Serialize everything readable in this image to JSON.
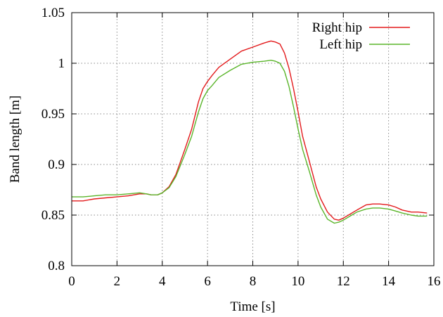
{
  "chart_data": {
    "type": "line",
    "xlabel": "Time [s]",
    "ylabel": "Band length [m]",
    "xlim": [
      0,
      16
    ],
    "ylim": [
      0.8,
      1.05
    ],
    "xticks": [
      0,
      2,
      4,
      6,
      8,
      10,
      12,
      14,
      16
    ],
    "xtick_labels": [
      "0",
      "2",
      "4",
      "6",
      "8",
      "10",
      "12",
      "14",
      "16"
    ],
    "yticks": [
      0.8,
      0.85,
      0.9,
      0.95,
      1.0,
      1.05
    ],
    "ytick_labels": [
      "0.8",
      "0.85",
      "0.9",
      "0.95",
      "1",
      "1.05"
    ],
    "grid": true,
    "legend_position": "top-right",
    "series": [
      {
        "name": "Right hip",
        "color": "#e31a1c",
        "x": [
          0,
          0.5,
          1,
          1.5,
          2,
          2.5,
          3,
          3.3,
          3.5,
          3.8,
          4.0,
          4.3,
          4.6,
          5.0,
          5.3,
          5.6,
          5.8,
          6.0,
          6.2,
          6.5,
          7.0,
          7.5,
          8.0,
          8.5,
          8.8,
          9.0,
          9.2,
          9.4,
          9.6,
          9.8,
          10.0,
          10.2,
          10.5,
          10.8,
          11.0,
          11.3,
          11.6,
          11.8,
          12.0,
          12.3,
          12.6,
          13.0,
          13.3,
          13.6,
          14.0,
          14.3,
          14.6,
          15.0,
          15.3,
          15.7
        ],
        "values": [
          0.864,
          0.864,
          0.866,
          0.867,
          0.868,
          0.869,
          0.871,
          0.871,
          0.87,
          0.87,
          0.872,
          0.878,
          0.89,
          0.915,
          0.935,
          0.962,
          0.975,
          0.982,
          0.988,
          0.996,
          1.004,
          1.012,
          1.016,
          1.02,
          1.022,
          1.021,
          1.019,
          1.01,
          0.995,
          0.975,
          0.952,
          0.928,
          0.903,
          0.878,
          0.866,
          0.853,
          0.846,
          0.845,
          0.847,
          0.851,
          0.855,
          0.86,
          0.861,
          0.861,
          0.86,
          0.858,
          0.855,
          0.853,
          0.853,
          0.852
        ]
      },
      {
        "name": "Left hip",
        "color": "#5ab52a",
        "x": [
          0,
          0.5,
          1,
          1.5,
          2,
          2.5,
          3,
          3.3,
          3.5,
          3.8,
          4.0,
          4.3,
          4.6,
          5.0,
          5.3,
          5.6,
          5.8,
          6.0,
          6.2,
          6.5,
          7.0,
          7.5,
          8.0,
          8.5,
          8.8,
          9.0,
          9.2,
          9.4,
          9.6,
          9.8,
          10.0,
          10.2,
          10.5,
          10.8,
          11.0,
          11.3,
          11.6,
          11.8,
          12.0,
          12.3,
          12.6,
          13.0,
          13.3,
          13.6,
          14.0,
          14.3,
          14.6,
          15.0,
          15.3,
          15.7
        ],
        "values": [
          0.868,
          0.868,
          0.869,
          0.87,
          0.87,
          0.871,
          0.872,
          0.871,
          0.87,
          0.87,
          0.872,
          0.877,
          0.888,
          0.91,
          0.928,
          0.952,
          0.965,
          0.973,
          0.978,
          0.986,
          0.993,
          0.999,
          1.001,
          1.002,
          1.003,
          1.002,
          1.0,
          0.992,
          0.977,
          0.957,
          0.935,
          0.915,
          0.893,
          0.87,
          0.858,
          0.846,
          0.842,
          0.843,
          0.845,
          0.849,
          0.853,
          0.856,
          0.857,
          0.857,
          0.856,
          0.854,
          0.852,
          0.85,
          0.849,
          0.849
        ]
      }
    ]
  }
}
